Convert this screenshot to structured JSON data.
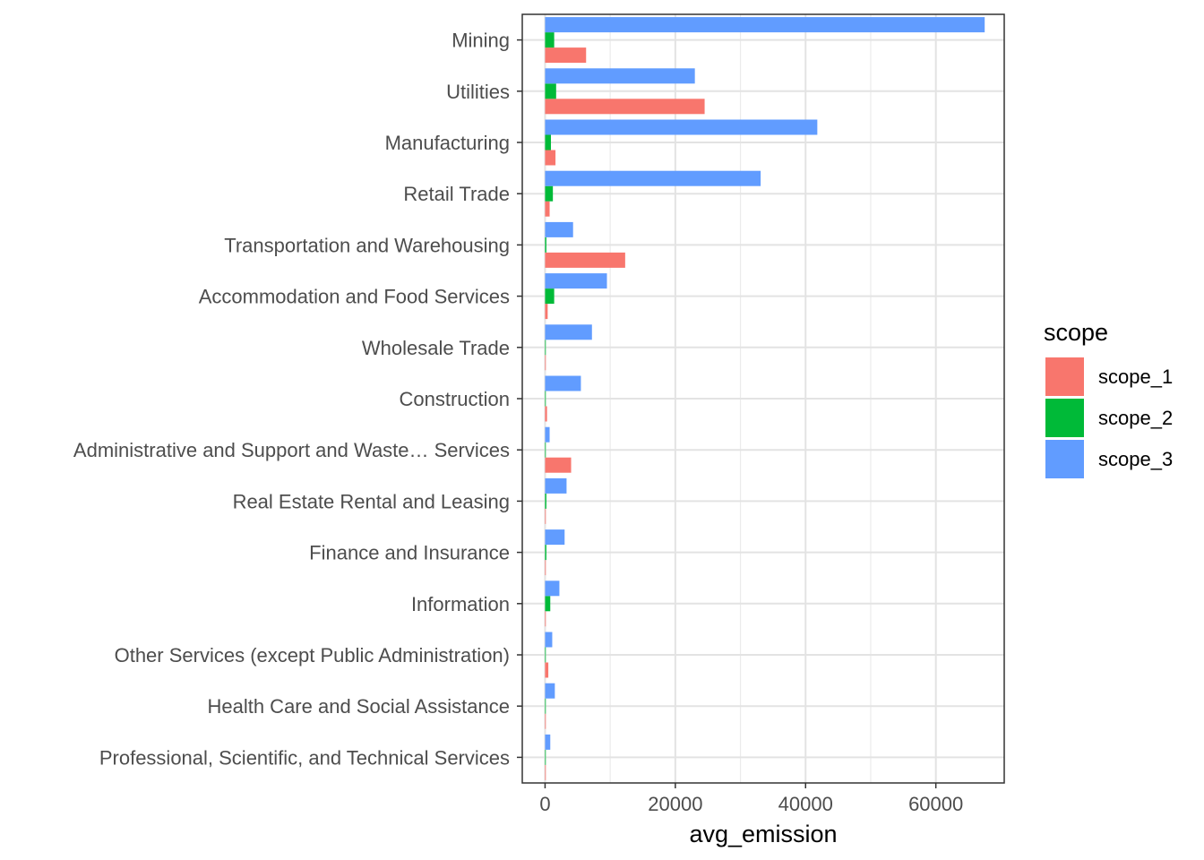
{
  "chart_data": {
    "type": "bar",
    "orientation": "horizontal",
    "title": "",
    "xlabel": "avg_emission",
    "ylabel": "",
    "xlim": [
      -3500,
      70500
    ],
    "x_ticks": [
      0,
      20000,
      40000,
      60000
    ],
    "x_tick_labels": [
      "0",
      "20000",
      "40000",
      "60000"
    ],
    "grid": true,
    "legend": {
      "title": "scope",
      "position": "right"
    },
    "categories": [
      "Mining",
      "Utilities",
      "Manufacturing",
      "Retail Trade",
      "Transportation and Warehousing",
      "Accommodation and Food Services",
      "Wholesale Trade",
      "Construction",
      "Administrative and Support and Waste… Services",
      "Real Estate Rental and Leasing",
      "Finance and Insurance",
      "Information",
      "Other Services (except Public Administration)",
      "Health Care and Social Assistance",
      "Professional, Scientific, and Technical Services"
    ],
    "series": [
      {
        "name": "scope_1",
        "color": "#F8766D",
        "values": [
          6300,
          24500,
          1600,
          700,
          12300,
          400,
          100,
          300,
          4000,
          100,
          0,
          100,
          500,
          100,
          0
        ]
      },
      {
        "name": "scope_2",
        "color": "#00BA38",
        "values": [
          1400,
          1700,
          900,
          1200,
          200,
          1400,
          100,
          100,
          100,
          200,
          200,
          800,
          100,
          100,
          100
        ]
      },
      {
        "name": "scope_3",
        "color": "#619CFF",
        "values": [
          67500,
          23000,
          41800,
          33100,
          4300,
          9500,
          7200,
          5500,
          700,
          3300,
          3000,
          2200,
          1100,
          1500,
          800
        ]
      }
    ]
  }
}
